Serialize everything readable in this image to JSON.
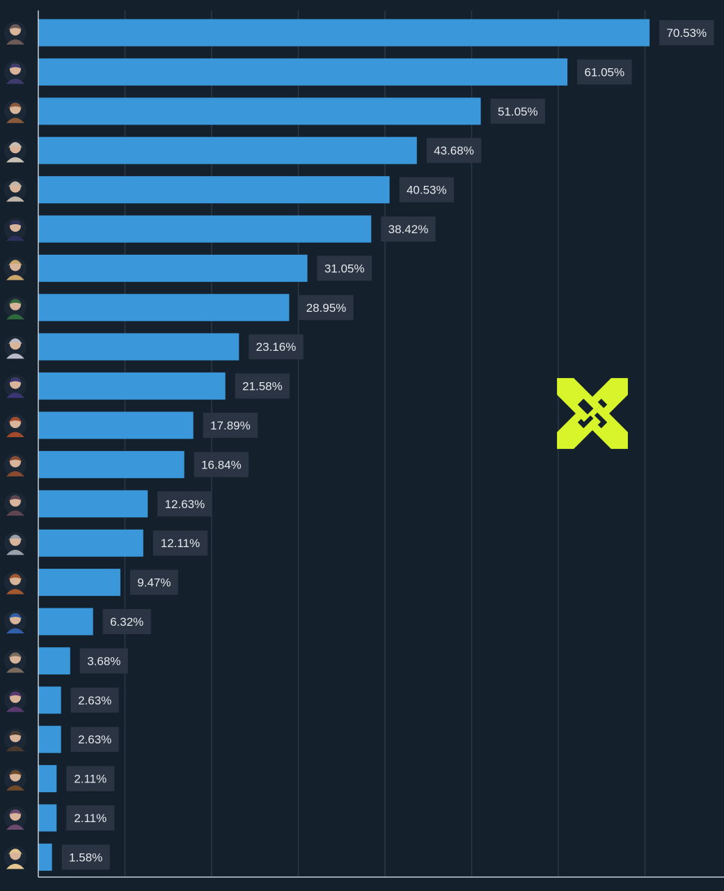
{
  "chart_data": {
    "type": "bar",
    "orientation": "horizontal",
    "categories": [
      "agent-01-icon",
      "agent-02-icon",
      "agent-03-icon",
      "agent-04-icon",
      "agent-05-icon",
      "agent-06-icon",
      "agent-07-icon",
      "agent-08-icon",
      "agent-09-icon",
      "agent-10-icon",
      "agent-11-icon",
      "agent-12-icon",
      "agent-13-icon",
      "agent-14-icon",
      "agent-15-icon",
      "agent-16-icon",
      "agent-17-icon",
      "agent-18-icon",
      "agent-19-icon",
      "agent-20-icon",
      "agent-21-icon",
      "agent-22-icon"
    ],
    "values": [
      70.53,
      61.05,
      51.05,
      43.68,
      40.53,
      38.42,
      31.05,
      28.95,
      23.16,
      21.58,
      17.89,
      16.84,
      12.63,
      12.11,
      9.47,
      6.32,
      3.68,
      2.63,
      2.63,
      2.11,
      2.11,
      1.58
    ],
    "data_labels": [
      "70.53%",
      "61.05%",
      "51.05%",
      "43.68%",
      "40.53%",
      "38.42%",
      "31.05%",
      "28.95%",
      "23.16%",
      "21.58%",
      "17.89%",
      "16.84%",
      "12.63%",
      "12.11%",
      "9.47%",
      "6.32%",
      "3.68%",
      "2.63%",
      "2.63%",
      "2.11%",
      "2.11%",
      "1.58%"
    ],
    "title": "",
    "xlabel": "",
    "ylabel": "",
    "xlim": [
      0,
      80
    ],
    "grid": "vertical",
    "legend": "none"
  },
  "colors": {
    "background": "#15202d",
    "bar": "#3a97d9",
    "label_background": "#2a3442",
    "label_text": "#e6e9ee",
    "gridline": "#2a3848",
    "axis": "#c9d1d9",
    "logo": "#d7f52a"
  },
  "logo": {
    "icon": "x-logo-icon"
  }
}
